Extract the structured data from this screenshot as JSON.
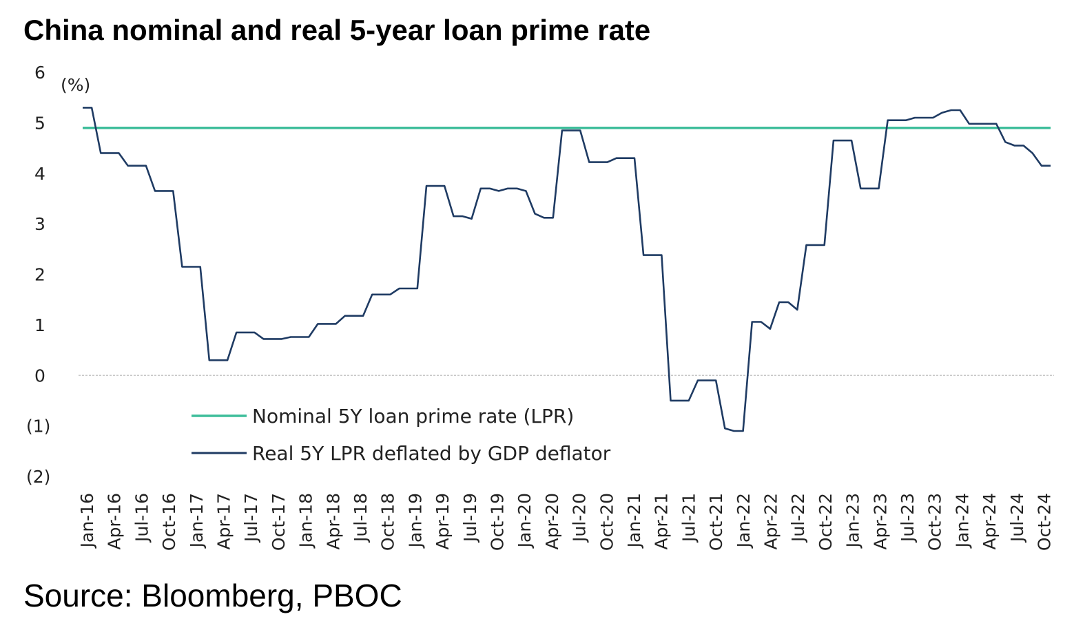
{
  "title": "China nominal and real 5-year loan prime rate",
  "source": "Source: Bloomberg, PBOC",
  "chart_data": {
    "type": "line",
    "y_unit": "(%)",
    "ylim": [
      -2,
      6
    ],
    "y_ticks": [
      {
        "value": 6,
        "label": "6"
      },
      {
        "value": 5,
        "label": "5"
      },
      {
        "value": 4,
        "label": "4"
      },
      {
        "value": 3,
        "label": "3"
      },
      {
        "value": 2,
        "label": "2"
      },
      {
        "value": 1,
        "label": "1"
      },
      {
        "value": 0,
        "label": "0"
      },
      {
        "value": -1,
        "label": "(1)"
      },
      {
        "value": -2,
        "label": "(2)"
      }
    ],
    "x_tick_labels": [
      "Jan-16",
      "Apr-16",
      "Jul-16",
      "Oct-16",
      "Jan-17",
      "Apr-17",
      "Jul-17",
      "Oct-17",
      "Jan-18",
      "Apr-18",
      "Jul-18",
      "Oct-18",
      "Jan-19",
      "Apr-19",
      "Jul-19",
      "Oct-19",
      "Jan-20",
      "Apr-20",
      "Jul-20",
      "Oct-20",
      "Jan-21",
      "Apr-21",
      "Jul-21",
      "Oct-21",
      "Jan-22",
      "Apr-22",
      "Jul-22",
      "Oct-22",
      "Jan-23",
      "Apr-23",
      "Jul-23",
      "Oct-23",
      "Jan-24",
      "Apr-24",
      "Jul-24",
      "Oct-24"
    ],
    "x_start": "Jan-16",
    "x_end": "Dec-24",
    "grid": false,
    "zero_line": true,
    "legend_position": "bottom-center",
    "series": [
      {
        "name": "Nominal 5Y loan prime rate (LPR)",
        "color": "#3dbd9a",
        "values": [
          4.9,
          4.9,
          4.9,
          4.9,
          4.9,
          4.9,
          4.9,
          4.9,
          4.9,
          4.9,
          4.9,
          4.9,
          4.9,
          4.9,
          4.9,
          4.9,
          4.9,
          4.9,
          4.9,
          4.9,
          4.9,
          4.9,
          4.9,
          4.9,
          4.9,
          4.9,
          4.9,
          4.9,
          4.9,
          4.9,
          4.9,
          4.9,
          4.9,
          4.9,
          4.9,
          4.9,
          4.9,
          4.9,
          4.9,
          4.9,
          4.9,
          4.9,
          4.9,
          4.9,
          4.9,
          4.9,
          4.9,
          4.9,
          4.9,
          4.9,
          4.9,
          4.9,
          4.9,
          4.9,
          4.9,
          4.9,
          4.9,
          4.9,
          4.9,
          4.9,
          4.9,
          4.9,
          4.9,
          4.9,
          4.9,
          4.9,
          4.9,
          4.9,
          4.9,
          4.9,
          4.9,
          4.9,
          4.9,
          4.9,
          4.9,
          4.9,
          4.9,
          4.9,
          4.9,
          4.9,
          4.9,
          4.9,
          4.9,
          4.9,
          4.9,
          4.9,
          4.9,
          4.9,
          4.9,
          4.9,
          4.9,
          4.9,
          4.9,
          4.9,
          4.9,
          4.9,
          4.9,
          4.9,
          4.9,
          4.9,
          4.9,
          4.9,
          4.9,
          4.9,
          4.9,
          4.9,
          4.9,
          4.9
        ]
      },
      {
        "name": "Real 5Y LPR deflated by GDP deflator",
        "color": "#1f3b63",
        "values": [
          5.3,
          5.3,
          4.4,
          4.4,
          4.4,
          4.15,
          4.15,
          4.15,
          3.65,
          3.65,
          3.65,
          2.15,
          2.15,
          2.15,
          0.3,
          0.3,
          0.3,
          0.85,
          0.85,
          0.85,
          0.72,
          0.72,
          0.72,
          0.76,
          0.76,
          0.76,
          1.02,
          1.02,
          1.02,
          1.18,
          1.18,
          1.18,
          1.6,
          1.6,
          1.6,
          1.72,
          1.72,
          1.72,
          3.75,
          3.75,
          3.75,
          3.15,
          3.15,
          3.1,
          3.7,
          3.7,
          3.65,
          3.7,
          3.7,
          3.65,
          3.2,
          3.12,
          3.12,
          4.85,
          4.85,
          4.85,
          4.22,
          4.22,
          4.22,
          4.3,
          4.3,
          4.3,
          2.38,
          2.38,
          2.38,
          -0.5,
          -0.5,
          -0.5,
          -0.1,
          -0.1,
          -0.1,
          -1.05,
          -1.1,
          -1.1,
          1.06,
          1.06,
          0.92,
          1.45,
          1.45,
          1.3,
          2.58,
          2.58,
          2.58,
          4.65,
          4.65,
          4.65,
          3.7,
          3.7,
          3.7,
          5.05,
          5.05,
          5.05,
          5.1,
          5.1,
          5.1,
          5.2,
          5.25,
          5.25,
          4.98,
          4.98,
          4.98,
          4.98,
          4.62,
          4.55,
          4.55,
          4.4,
          4.15,
          4.15
        ]
      }
    ]
  }
}
